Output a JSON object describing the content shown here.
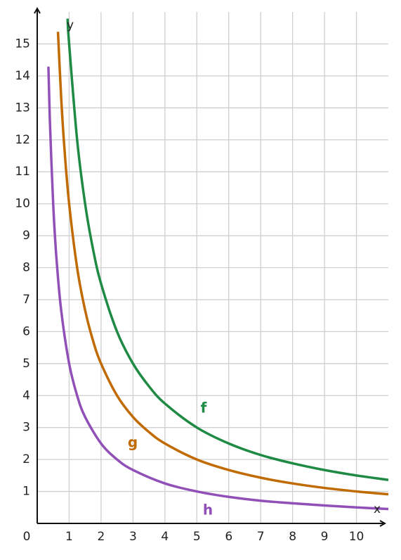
{
  "chart_data": {
    "type": "line",
    "x_label": "x",
    "y_label": "y",
    "xlim": [
      0,
      11
    ],
    "ylim": [
      0,
      16
    ],
    "xticks": [
      0,
      1,
      2,
      3,
      4,
      5,
      6,
      7,
      8,
      9,
      10
    ],
    "yticks": [
      1,
      2,
      3,
      4,
      5,
      6,
      7,
      8,
      9,
      10,
      11,
      12,
      13,
      14,
      15
    ],
    "grid": true,
    "series": [
      {
        "name": "f",
        "color": "#1e8a44",
        "x": [
          0.95,
          1,
          1.25,
          1.5,
          1.75,
          2,
          2.5,
          3,
          3.5,
          4,
          5,
          6,
          7,
          8,
          9,
          10,
          11
        ],
        "values": [
          15.79,
          15,
          12,
          10,
          8.57,
          7.5,
          6,
          5,
          4.29,
          3.75,
          3,
          2.5,
          2.14,
          1.88,
          1.67,
          1.5,
          1.36
        ]
      },
      {
        "name": "g",
        "color": "#c06a00",
        "x": [
          0.65,
          0.75,
          0.85,
          1,
          1.25,
          1.5,
          1.75,
          2,
          2.5,
          3,
          3.5,
          4,
          5,
          6,
          7,
          8,
          9,
          10,
          11
        ],
        "values": [
          15.38,
          13.33,
          11.76,
          10,
          8,
          6.67,
          5.71,
          5,
          4,
          3.33,
          2.86,
          2.5,
          2,
          1.67,
          1.43,
          1.25,
          1.11,
          1,
          0.91
        ]
      },
      {
        "name": "h",
        "color": "#9150b8",
        "x": [
          0.35,
          0.4,
          0.5,
          0.6,
          0.75,
          1,
          1.25,
          1.5,
          2,
          2.5,
          3,
          4,
          5,
          6,
          7,
          8,
          9,
          10,
          11
        ],
        "values": [
          14.29,
          12.5,
          10,
          8.33,
          6.67,
          5,
          4,
          3.33,
          2.5,
          2,
          1.67,
          1.25,
          1,
          0.83,
          0.71,
          0.63,
          0.56,
          0.5,
          0.45
        ]
      }
    ]
  }
}
